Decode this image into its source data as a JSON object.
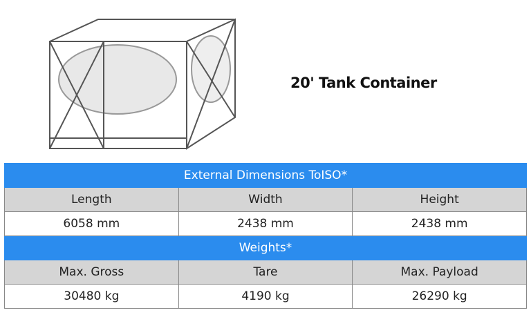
{
  "title": "20' Tank Container",
  "table": {
    "dims_header": "External Dimensions ToISO*",
    "dims_cols": [
      "Length",
      "Width",
      "Height"
    ],
    "dims_vals": [
      "6058 mm",
      "2438 mm",
      "2438 mm"
    ],
    "weights_header": "Weights*",
    "weights_cols": [
      "Max. Gross",
      "Tare",
      "Max. Payload"
    ],
    "weights_vals": [
      "30480 kg",
      "4190 kg",
      "26290 kg"
    ]
  },
  "colors": {
    "header": "#2b8cee",
    "subheader": "#d5d5d5"
  }
}
